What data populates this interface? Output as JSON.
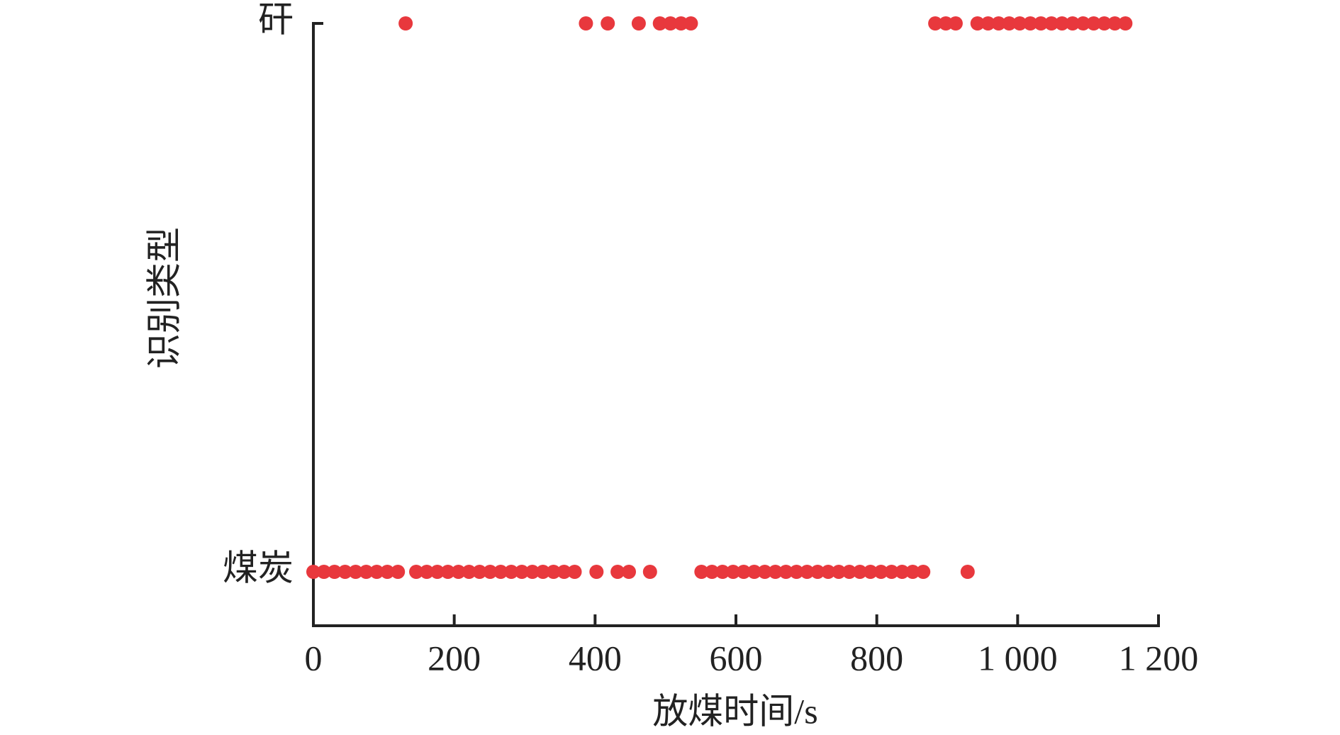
{
  "chart_data": {
    "type": "scatter",
    "x_label": "放煤时间/s",
    "y_label": "识别类型",
    "xlim": [
      0,
      1200
    ],
    "xticks": [
      0,
      200,
      400,
      600,
      800,
      {
        "value": 1000,
        "label": "1 000"
      },
      {
        "value": 1200,
        "label": "1 200"
      }
    ],
    "color": "#e8383d",
    "series": [
      {
        "name": "煤炭",
        "x": [
          0,
          15,
          30,
          45,
          60,
          75,
          90,
          105,
          120,
          146,
          161,
          176,
          191,
          206,
          221,
          236,
          251,
          266,
          281,
          296,
          311,
          326,
          341,
          356,
          371,
          402,
          432,
          448,
          478,
          551,
          566,
          581,
          596,
          611,
          626,
          641,
          656,
          671,
          686,
          701,
          716,
          731,
          746,
          761,
          776,
          791,
          806,
          821,
          836,
          851,
          866,
          929
        ]
      },
      {
        "name": "矸",
        "x": [
          131,
          387,
          418,
          462,
          492,
          507,
          522,
          536,
          883,
          898,
          912,
          943,
          958,
          973,
          988,
          1003,
          1018,
          1033,
          1048,
          1063,
          1078,
          1093,
          1108,
          1123,
          1138,
          1153
        ]
      }
    ]
  }
}
